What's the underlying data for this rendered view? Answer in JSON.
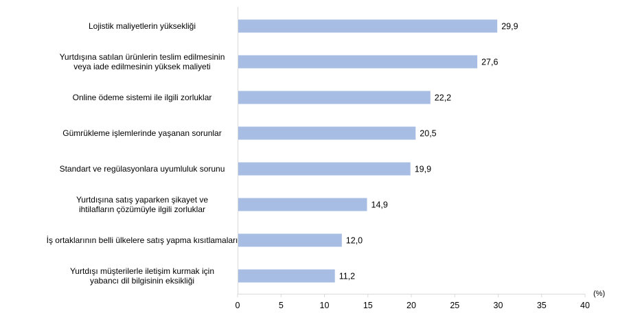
{
  "chart_data": {
    "type": "bar",
    "orientation": "horizontal",
    "categories": [
      [
        "Lojistik maliyetlerin yüksekliği"
      ],
      [
        "Yurtdışına satılan ürünlerin teslim edilmesinin",
        "veya iade edilmesinin yüksek maliyeti"
      ],
      [
        "Online ödeme sistemi ile ilgili zorluklar"
      ],
      [
        "Gümrükleme işlemlerinde yaşanan sorunlar"
      ],
      [
        "Standart ve regülasyonlara uyumluluk sorunu"
      ],
      [
        "Yurtdışına satış yaparken şikayet ve",
        "ihtilafların çözümüyle ilgili zorluklar"
      ],
      [
        "İş ortaklarının belli ülkelere satış yapma kısıtlamaları"
      ],
      [
        "Yurtdışı müşterilerle iletişim kurmak için",
        "yabancı dil bilgisinin eksikliği"
      ]
    ],
    "values": [
      29.9,
      27.6,
      22.2,
      20.5,
      19.9,
      14.9,
      12.0,
      11.2
    ],
    "value_labels": [
      "29,9",
      "27,6",
      "22,2",
      "20,5",
      "19,9",
      "14,9",
      "12,0",
      "11,2"
    ],
    "xlim": [
      0,
      40
    ],
    "xticks": [
      0,
      5,
      10,
      15,
      20,
      25,
      30,
      35,
      40
    ],
    "unit": "(%)",
    "title": "",
    "xlabel": "",
    "ylabel": "",
    "grid": false,
    "legend": "none",
    "bar_color": "#a7bde3",
    "axis_color": "#d9d9d9"
  }
}
